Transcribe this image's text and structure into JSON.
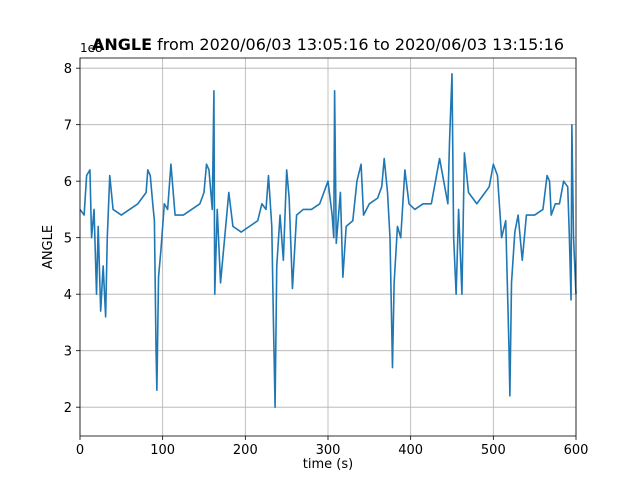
{
  "chart_data": {
    "type": "line",
    "title_bold": "ANGLE",
    "title": "from 2020/06/03 13:05:16 to 2020/06/03 13:15:16",
    "x_label": "time (s)",
    "y_label": "ANGLE",
    "offset_label": "1e8",
    "xlim": [
      0,
      600
    ],
    "ylim": [
      1.49,
      8.18
    ],
    "xticks": [
      0,
      100,
      200,
      300,
      400,
      500,
      600
    ],
    "yticks": [
      2,
      3,
      4,
      5,
      6,
      7,
      8
    ],
    "grid": true,
    "x": [
      0,
      5,
      8,
      12,
      14,
      17,
      20,
      22,
      25,
      28,
      31,
      33,
      36,
      40,
      50,
      60,
      70,
      80,
      82,
      85,
      88,
      90,
      92,
      93,
      95,
      98,
      102,
      106,
      110,
      115,
      125,
      135,
      145,
      150,
      153,
      156,
      160,
      162,
      163,
      166,
      170,
      175,
      180,
      185,
      195,
      205,
      215,
      220,
      225,
      228,
      232,
      234,
      236,
      238,
      242,
      246,
      250,
      253,
      257,
      262,
      270,
      280,
      290,
      300,
      305,
      307,
      308,
      310,
      315,
      318,
      322,
      330,
      335,
      340,
      343,
      350,
      360,
      365,
      368,
      372,
      375,
      378,
      380,
      384,
      388,
      393,
      398,
      405,
      415,
      425,
      430,
      435,
      440,
      445,
      447,
      450,
      452,
      455,
      458,
      462,
      465,
      470,
      480,
      490,
      495,
      500,
      505,
      510,
      515,
      519,
      520,
      522,
      526,
      530,
      535,
      540,
      550,
      560,
      565,
      568,
      570,
      575,
      580,
      585,
      590,
      592,
      594,
      595,
      597,
      600
    ],
    "series": [
      {
        "name": "ANGLE",
        "color": "#1f77b4",
        "values": [
          5.5,
          5.4,
          6.1,
          6.2,
          5.0,
          5.5,
          4.0,
          5.2,
          3.7,
          4.5,
          3.6,
          5.0,
          6.1,
          5.5,
          5.4,
          5.5,
          5.6,
          5.8,
          6.2,
          6.1,
          5.6,
          5.3,
          3.0,
          2.3,
          4.3,
          4.8,
          5.6,
          5.5,
          6.3,
          5.4,
          5.4,
          5.5,
          5.6,
          5.8,
          6.3,
          6.2,
          5.5,
          7.6,
          4.0,
          5.5,
          4.2,
          5.0,
          5.8,
          5.2,
          5.1,
          5.2,
          5.3,
          5.6,
          5.5,
          6.1,
          5.2,
          3.5,
          2.0,
          4.5,
          5.4,
          4.6,
          6.2,
          5.7,
          4.1,
          5.4,
          5.5,
          5.5,
          5.6,
          6.0,
          5.4,
          5.0,
          7.6,
          4.9,
          5.8,
          4.3,
          5.2,
          5.3,
          6.0,
          6.3,
          5.4,
          5.6,
          5.7,
          5.9,
          6.4,
          5.8,
          5.0,
          2.7,
          4.2,
          5.2,
          5.0,
          6.2,
          5.6,
          5.5,
          5.6,
          5.6,
          6.0,
          6.4,
          6.0,
          5.6,
          6.7,
          7.9,
          5.0,
          4.0,
          5.5,
          4.0,
          6.5,
          5.8,
          5.6,
          5.8,
          5.9,
          6.3,
          6.1,
          5.0,
          5.3,
          3.0,
          2.2,
          4.2,
          5.1,
          5.4,
          4.6,
          5.4,
          5.4,
          5.5,
          6.1,
          6.0,
          5.4,
          5.6,
          5.6,
          6.0,
          5.9,
          5.0,
          3.9,
          7.0,
          5.0,
          4.0
        ]
      }
    ]
  }
}
